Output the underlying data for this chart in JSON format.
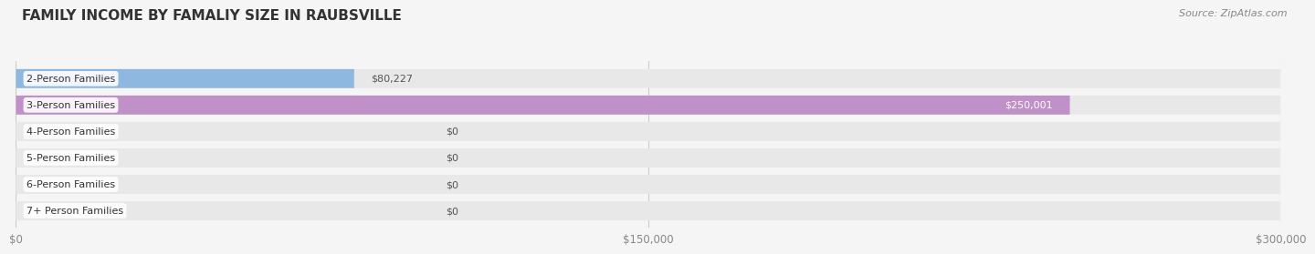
{
  "title": "FAMILY INCOME BY FAMALIY SIZE IN RAUBSVILLE",
  "source": "Source: ZipAtlas.com",
  "categories": [
    "2-Person Families",
    "3-Person Families",
    "4-Person Families",
    "5-Person Families",
    "6-Person Families",
    "7+ Person Families"
  ],
  "values": [
    80227,
    250001,
    0,
    0,
    0,
    0
  ],
  "bar_colors": [
    "#8fb8e0",
    "#c090c8",
    "#60c8b0",
    "#a0a8e0",
    "#f0a0b8",
    "#f8d8a0"
  ],
  "label_colors": [
    "#555555",
    "#ffffff",
    "#555555",
    "#555555",
    "#555555",
    "#555555"
  ],
  "value_labels": [
    "$80,227",
    "$250,001",
    "$0",
    "$0",
    "$0",
    "$0"
  ],
  "bg_color": "#f5f5f5",
  "bar_bg_color": "#e8e8e8",
  "xlim": [
    0,
    300000
  ],
  "xticks": [
    0,
    150000,
    300000
  ],
  "xtick_labels": [
    "$0",
    "$150,000",
    "$300,000"
  ],
  "title_fontsize": 11,
  "source_fontsize": 8
}
